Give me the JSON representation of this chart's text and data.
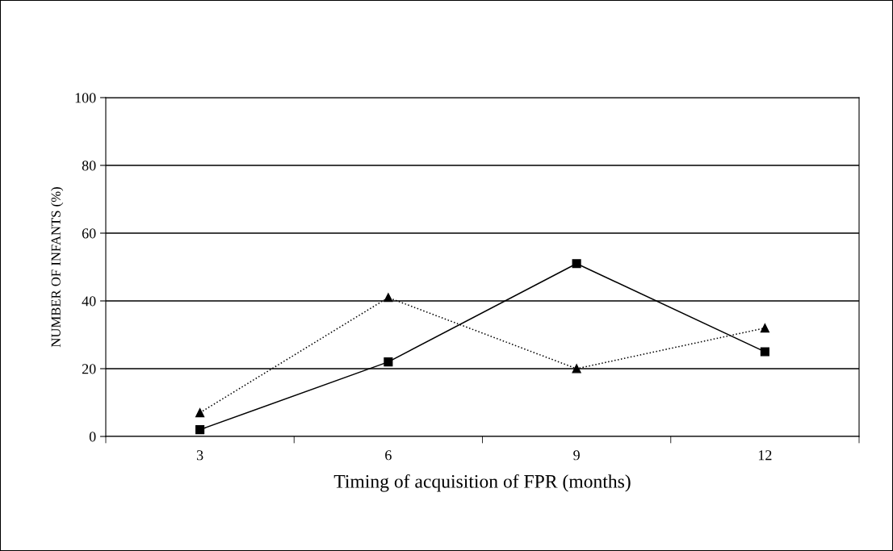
{
  "chart_data": {
    "type": "line",
    "xlabel": "Timing of acquisition of FPR (months)",
    "ylabel": "NUMBER OF INFANTS (%)",
    "categories": [
      "3",
      "6",
      "9",
      "12"
    ],
    "series": [
      {
        "color": "#000000",
        "values": [
          2,
          22,
          51,
          25
        ],
        "marker": "square",
        "line_style": "solid"
      },
      {
        "color": "#000000",
        "values": [
          7,
          41,
          20,
          32
        ],
        "marker": "triangle",
        "line_style": "dotted"
      }
    ],
    "ylim": [
      0,
      100
    ],
    "yticks": [
      0,
      20,
      40,
      60,
      80,
      100
    ],
    "grid": "y",
    "legend": false
  }
}
